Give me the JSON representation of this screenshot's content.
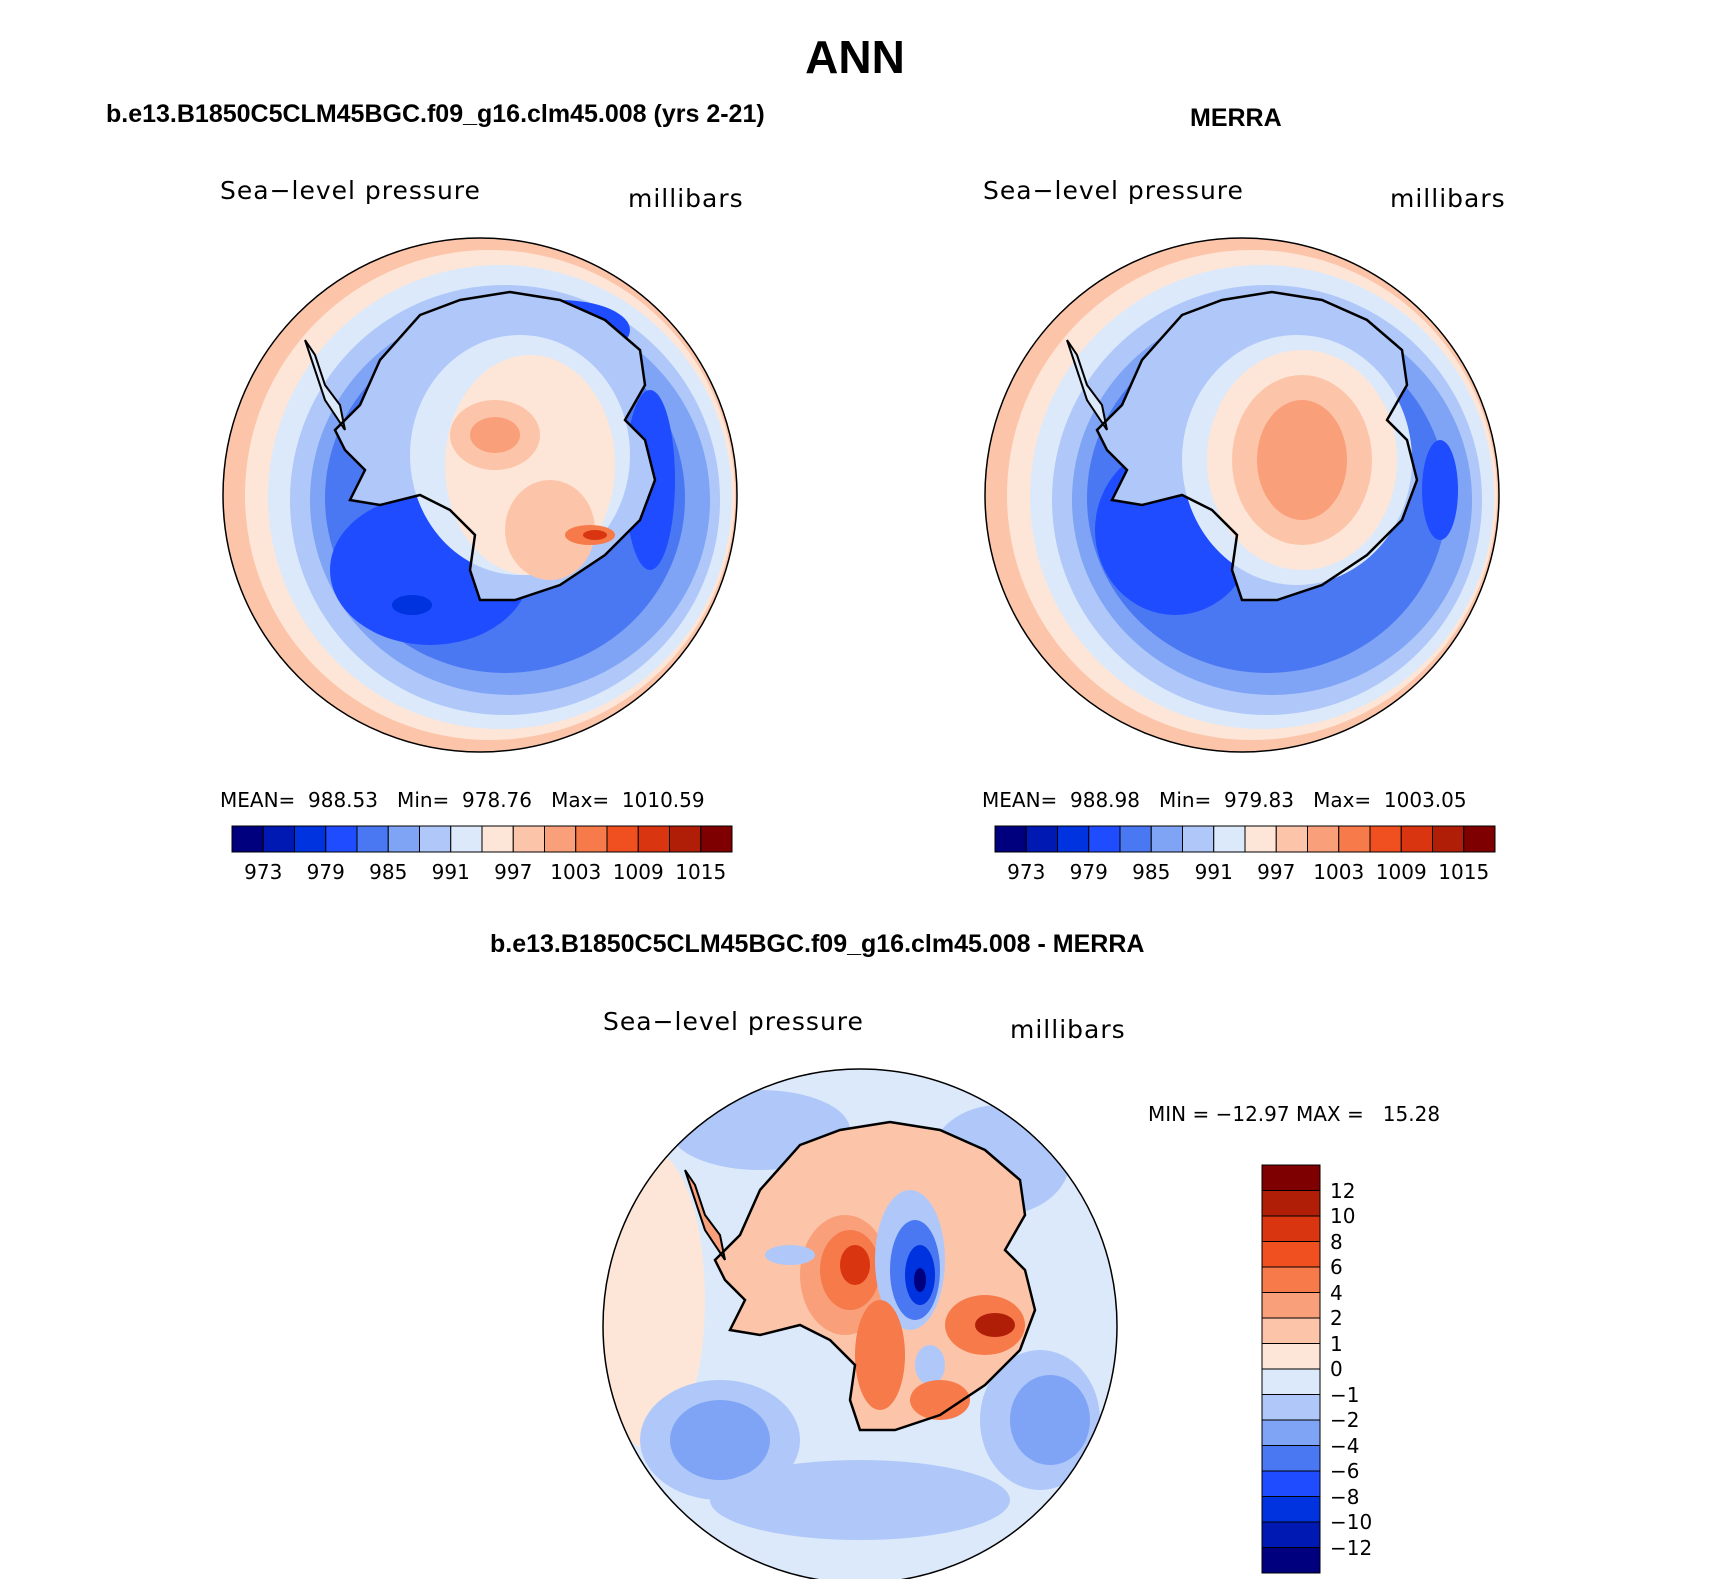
{
  "title": "ANN",
  "panels": [
    {
      "id": "model",
      "header": "b.e13.B1850C5CLM45BGC.f09_g16.clm45.008 (yrs 2-21)",
      "field_label": "Sea−level pressure",
      "units": "millibars",
      "stats_text": "MEAN=  988.53   Min=  978.76   Max=  1010.59",
      "stats": {
        "mean": 988.53,
        "min": 978.76,
        "max": 1010.59
      }
    },
    {
      "id": "obs",
      "header": "MERRA",
      "field_label": "Sea−level pressure",
      "units": "millibars",
      "stats_text": "MEAN=  988.98   Min=  979.83   Max=  1003.05",
      "stats": {
        "mean": 988.98,
        "min": 979.83,
        "max": 1003.05
      }
    },
    {
      "id": "diff",
      "header": "b.e13.B1850C5CLM45BGC.f09_g16.clm45.008 - MERRA",
      "field_label": "Sea−level pressure",
      "units": "millibars",
      "stats_text": "MIN = −12.97 MAX =   15.28",
      "stats": {
        "min": -12.97,
        "max": 15.28
      }
    }
  ],
  "colorbar_abs": {
    "labels": [
      "973",
      "979",
      "985",
      "991",
      "997",
      "1003",
      "1009",
      "1015"
    ],
    "colors": [
      "#00007f",
      "#0019b2",
      "#0033e0",
      "#1f4cff",
      "#4a78f2",
      "#7fa3f5",
      "#afc8f9",
      "#dbe9fa",
      "#fde6d8",
      "#fcc5aa",
      "#f9a07a",
      "#f67a4a",
      "#f05020",
      "#d83510",
      "#b01e08",
      "#7f0000"
    ]
  },
  "colorbar_diff": {
    "labels": [
      "12",
      "10",
      "8",
      "6",
      "4",
      "2",
      "1",
      "0",
      "−1",
      "−2",
      "−4",
      "−6",
      "−8",
      "−10",
      "−12"
    ],
    "colors": [
      "#7f0000",
      "#b01e08",
      "#d83510",
      "#f05020",
      "#f67a4a",
      "#f9a07a",
      "#fcc5aa",
      "#fde6d8",
      "#dbe9fa",
      "#afc8f9",
      "#7fa3f5",
      "#4a78f2",
      "#1f4cff",
      "#0033e0",
      "#0019b2",
      "#00007f"
    ]
  }
}
